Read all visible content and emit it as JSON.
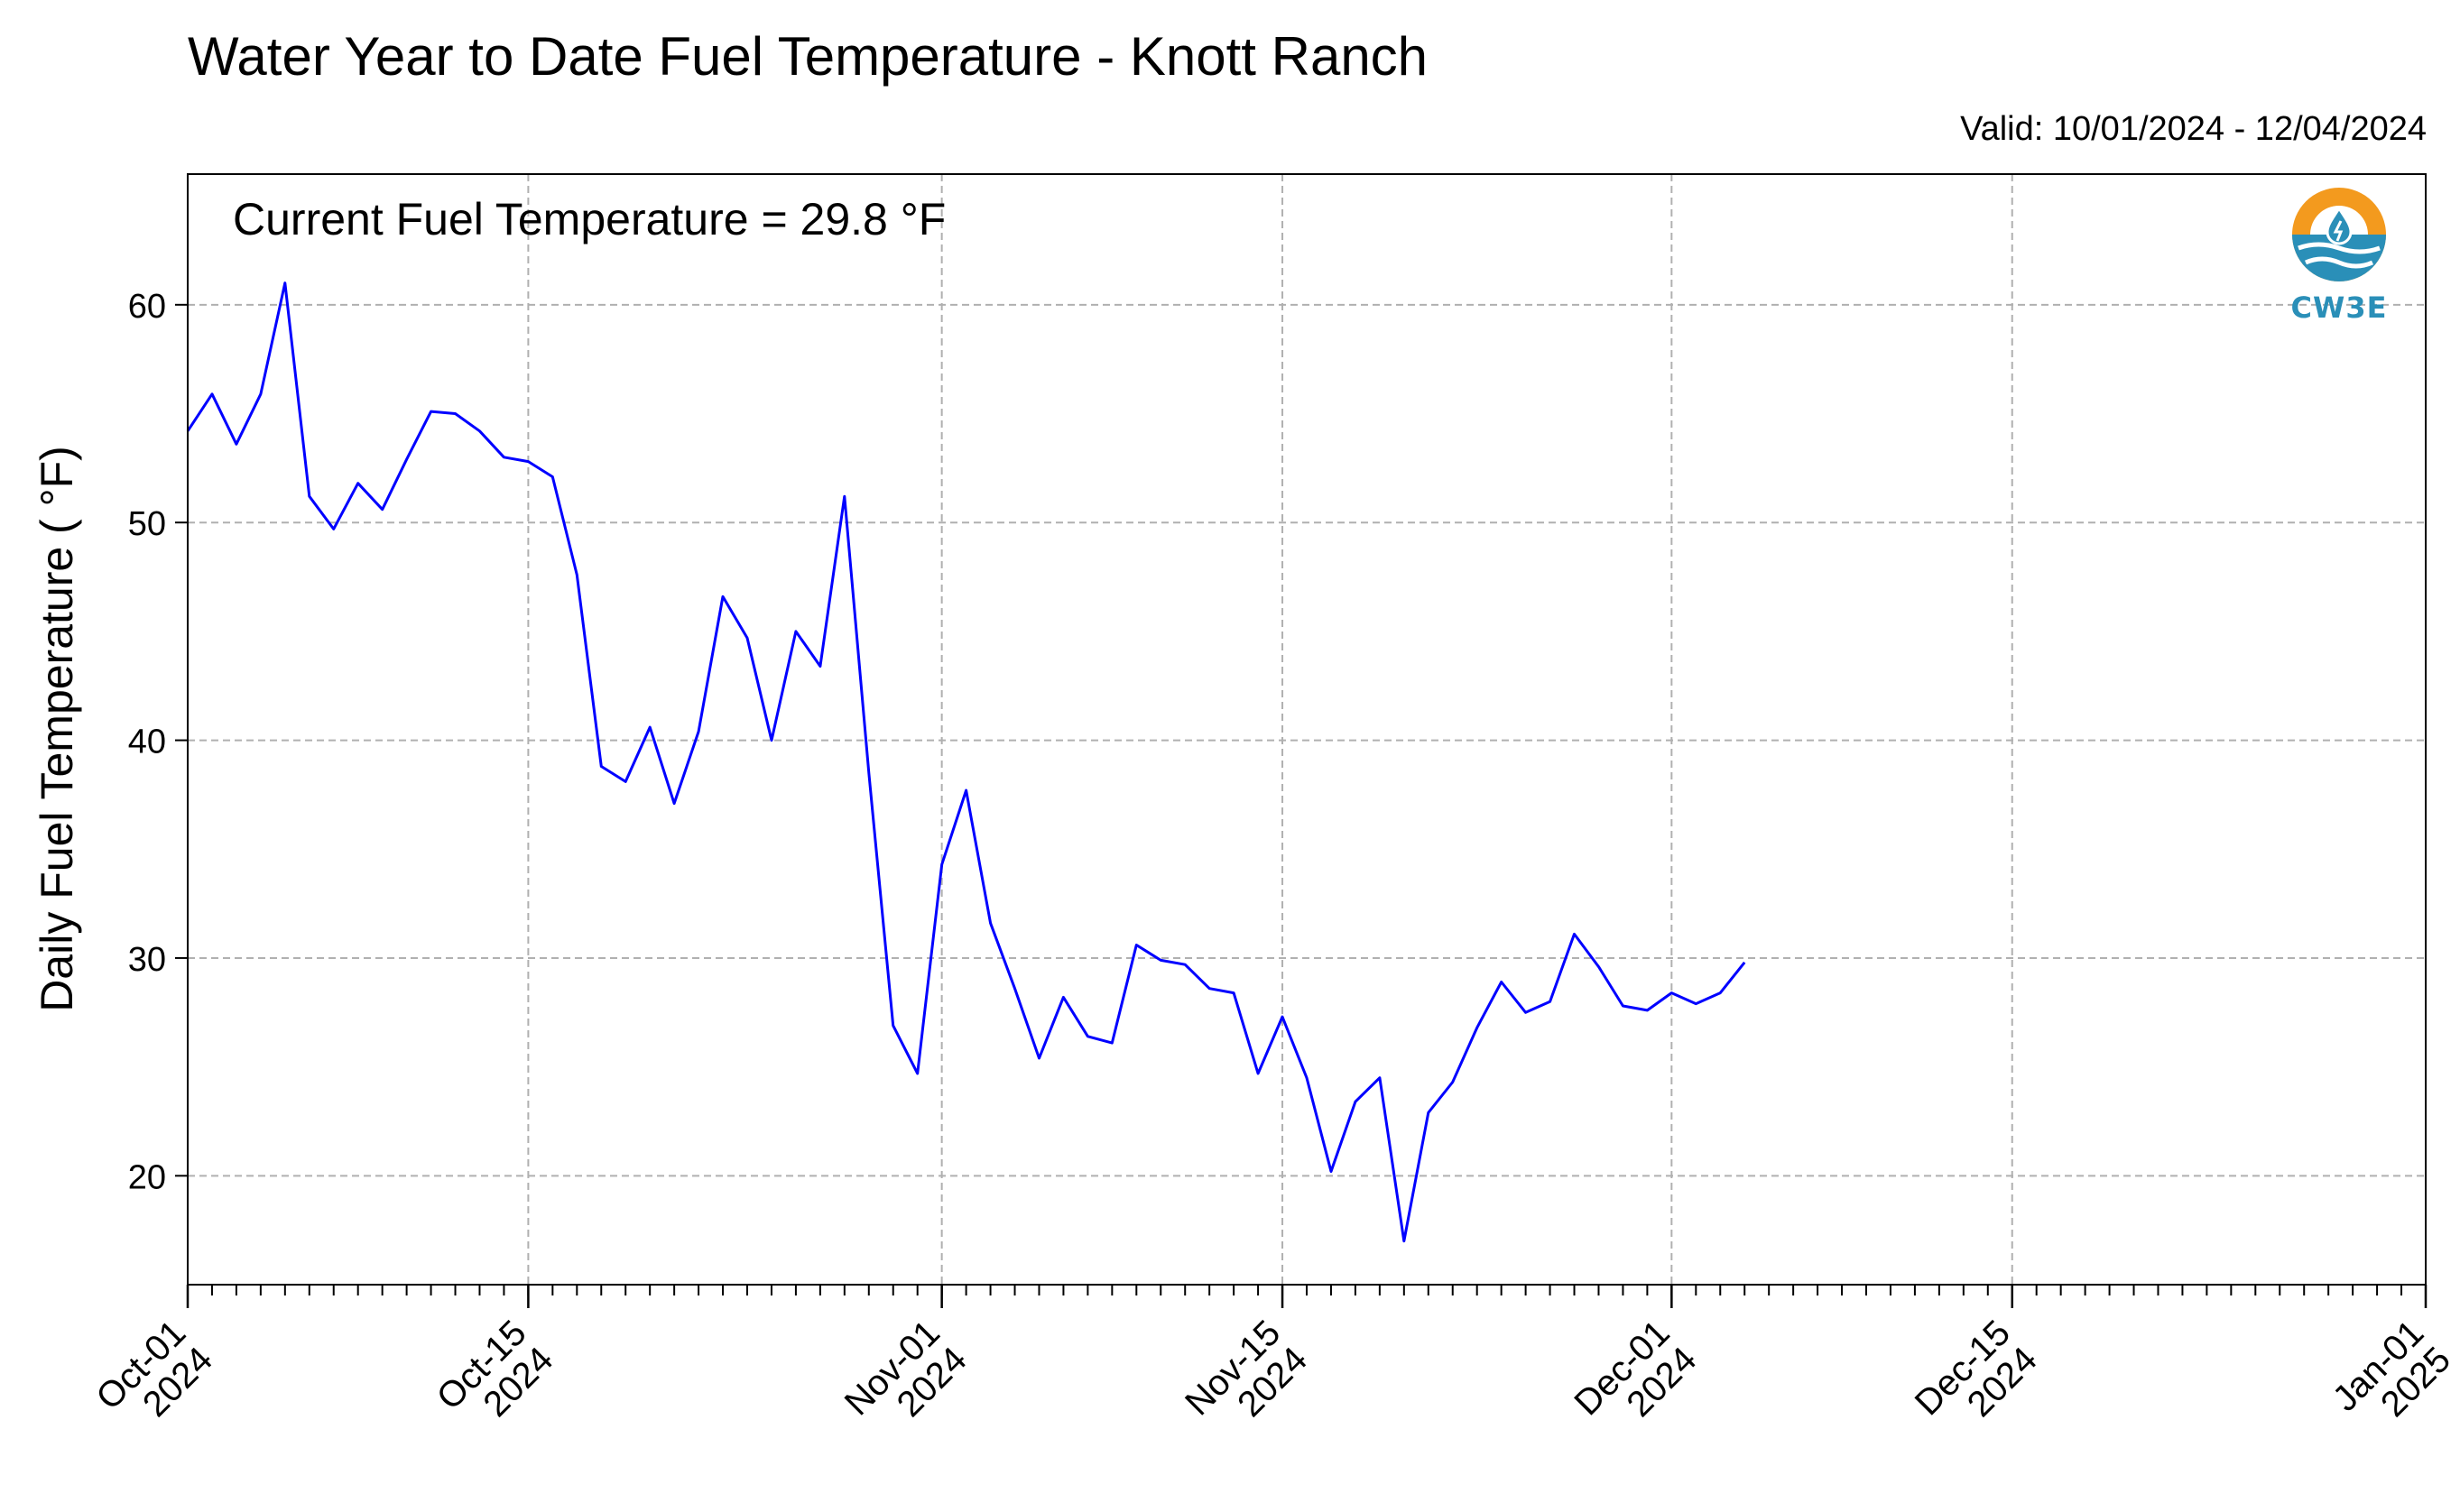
{
  "title": "Water Year to Date Fuel Temperature - Knott Ranch",
  "valid_label": "Valid: 10/01/2024 - 12/04/2024",
  "current_label": "Current Fuel Temperature = 29.8  °F",
  "logo": {
    "text": "CW3E",
    "icon": "cw3e-water-drop-logo",
    "colors": {
      "orange": "#f39a1e",
      "blue": "#2a8fb8"
    }
  },
  "colors": {
    "line": "#0000ff",
    "grid": "#b0b0b0"
  },
  "chart_data": {
    "type": "line",
    "title": "Water Year to Date Fuel Temperature - Knott Ranch",
    "ylabel": "Daily Fuel Temperature ( °F)",
    "xlabel": "",
    "xlim": [
      "2024-10-01",
      "2025-01-01"
    ],
    "ylim": [
      15,
      66
    ],
    "grid": true,
    "y_ticks": [
      20,
      30,
      40,
      50,
      60
    ],
    "x_ticks": [
      {
        "date": "2024-10-01",
        "line1": "Oct-01",
        "line2": "2024"
      },
      {
        "date": "2024-10-15",
        "line1": "Oct-15",
        "line2": "2024"
      },
      {
        "date": "2024-11-01",
        "line1": "Nov-01",
        "line2": "2024"
      },
      {
        "date": "2024-11-15",
        "line1": "Nov-15",
        "line2": "2024"
      },
      {
        "date": "2024-12-01",
        "line1": "Dec-01",
        "line2": "2024"
      },
      {
        "date": "2024-12-15",
        "line1": "Dec-15",
        "line2": "2024"
      },
      {
        "date": "2025-01-01",
        "line1": "Jan-01",
        "line2": "2025"
      }
    ],
    "series": [
      {
        "start_date": "2024-10-01",
        "values": [
          54.2,
          55.9,
          53.6,
          55.9,
          61.0,
          51.2,
          49.7,
          51.8,
          50.6,
          52.9,
          55.1,
          55.0,
          54.2,
          53.0,
          52.8,
          52.1,
          47.6,
          38.8,
          38.1,
          40.6,
          37.1,
          40.4,
          46.6,
          44.7,
          40.0,
          45.0,
          43.4,
          51.2,
          38.5,
          26.9,
          24.7,
          34.3,
          37.7,
          31.6,
          28.6,
          25.4,
          28.2,
          26.4,
          26.1,
          30.6,
          29.9,
          29.7,
          28.6,
          28.4,
          24.7,
          27.3,
          24.5,
          20.2,
          23.4,
          24.5,
          17.0,
          22.9,
          24.3,
          26.8,
          28.9,
          27.5,
          28.0,
          31.1,
          29.6,
          27.8,
          27.6,
          28.4,
          27.9,
          28.4,
          29.8
        ]
      }
    ]
  }
}
